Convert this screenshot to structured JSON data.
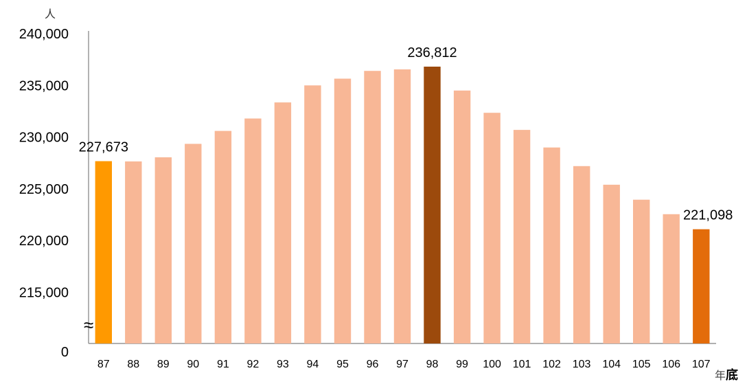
{
  "chart_data": {
    "type": "bar",
    "ylabel": "人",
    "xlabel": "年底",
    "xlabel_parts": [
      "年",
      "底"
    ],
    "axis_break_symbol": "≈",
    "ylim": [
      212500,
      240000
    ],
    "y_ticks": [
      {
        "label": "240,000",
        "value": 240000
      },
      {
        "label": "235,000",
        "value": 235000
      },
      {
        "label": "230,000",
        "value": 230000
      },
      {
        "label": "225,000",
        "value": 225000
      },
      {
        "label": "220,000",
        "value": 220000
      },
      {
        "label": "215,000",
        "value": 215000
      },
      {
        "label": "0",
        "value": null
      }
    ],
    "categories": [
      "87",
      "88",
      "89",
      "90",
      "91",
      "92",
      "93",
      "94",
      "95",
      "96",
      "97",
      "98",
      "99",
      "100",
      "101",
      "102",
      "103",
      "104",
      "105",
      "106",
      "107"
    ],
    "values": [
      227673,
      227650,
      228050,
      229350,
      230600,
      231800,
      233350,
      235000,
      235650,
      236400,
      236550,
      236812,
      234500,
      232350,
      230700,
      229000,
      227200,
      225400,
      223950,
      222550,
      221098
    ],
    "colors": {
      "default": "#F8B796",
      "first": "#FF9900",
      "max": "#9C4A0C",
      "last": "#E36C0A",
      "axis": "#808080"
    },
    "highlight_indices": {
      "first": 0,
      "max": 11,
      "last": 20
    },
    "data_labels": [
      {
        "index": 0,
        "text": "227,673"
      },
      {
        "index": 11,
        "text": "236,812"
      },
      {
        "index": 20,
        "text": "221,098"
      }
    ],
    "grid": false,
    "legend": "none"
  }
}
